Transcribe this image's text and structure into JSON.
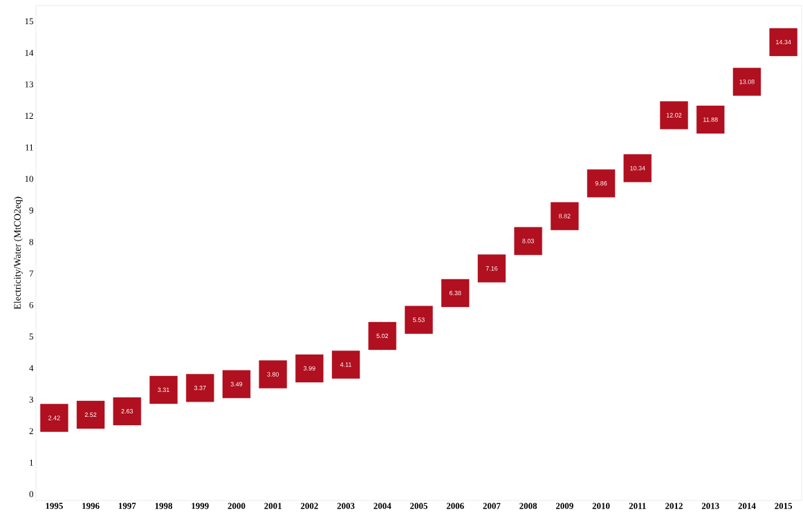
{
  "chart_data": {
    "type": "scatter",
    "ylabel": "Electricity/Water (MtCO2eq)",
    "categories": [
      "1995",
      "1996",
      "1997",
      "1998",
      "1999",
      "2000",
      "2001",
      "2002",
      "2003",
      "2004",
      "2005",
      "2006",
      "2007",
      "2008",
      "2009",
      "2010",
      "2011",
      "2012",
      "2013",
      "2014",
      "2015"
    ],
    "values": [
      2.42,
      2.52,
      2.63,
      3.31,
      3.37,
      3.49,
      3.8,
      3.99,
      4.11,
      5.02,
      5.53,
      6.38,
      7.16,
      8.03,
      8.82,
      9.86,
      10.34,
      12.02,
      11.88,
      13.08,
      14.34
    ],
    "value_labels": [
      "2.42",
      "2.52",
      "2.63",
      "3.31",
      "3.37",
      "3.49",
      "3.80",
      "3.99",
      "4.11",
      "5.02",
      "5.53",
      "6.38",
      "7.16",
      "8.03",
      "8.82",
      "9.86",
      "10.34",
      "12.02",
      "11.88",
      "13.08",
      "14.34"
    ],
    "color": "#b0101f",
    "marker": "square",
    "ylim": [
      -0.2,
      15.5
    ],
    "yticks": [
      0,
      1,
      2,
      3,
      4,
      5,
      6,
      7,
      8,
      9,
      10,
      11,
      12,
      13,
      14,
      15
    ]
  }
}
